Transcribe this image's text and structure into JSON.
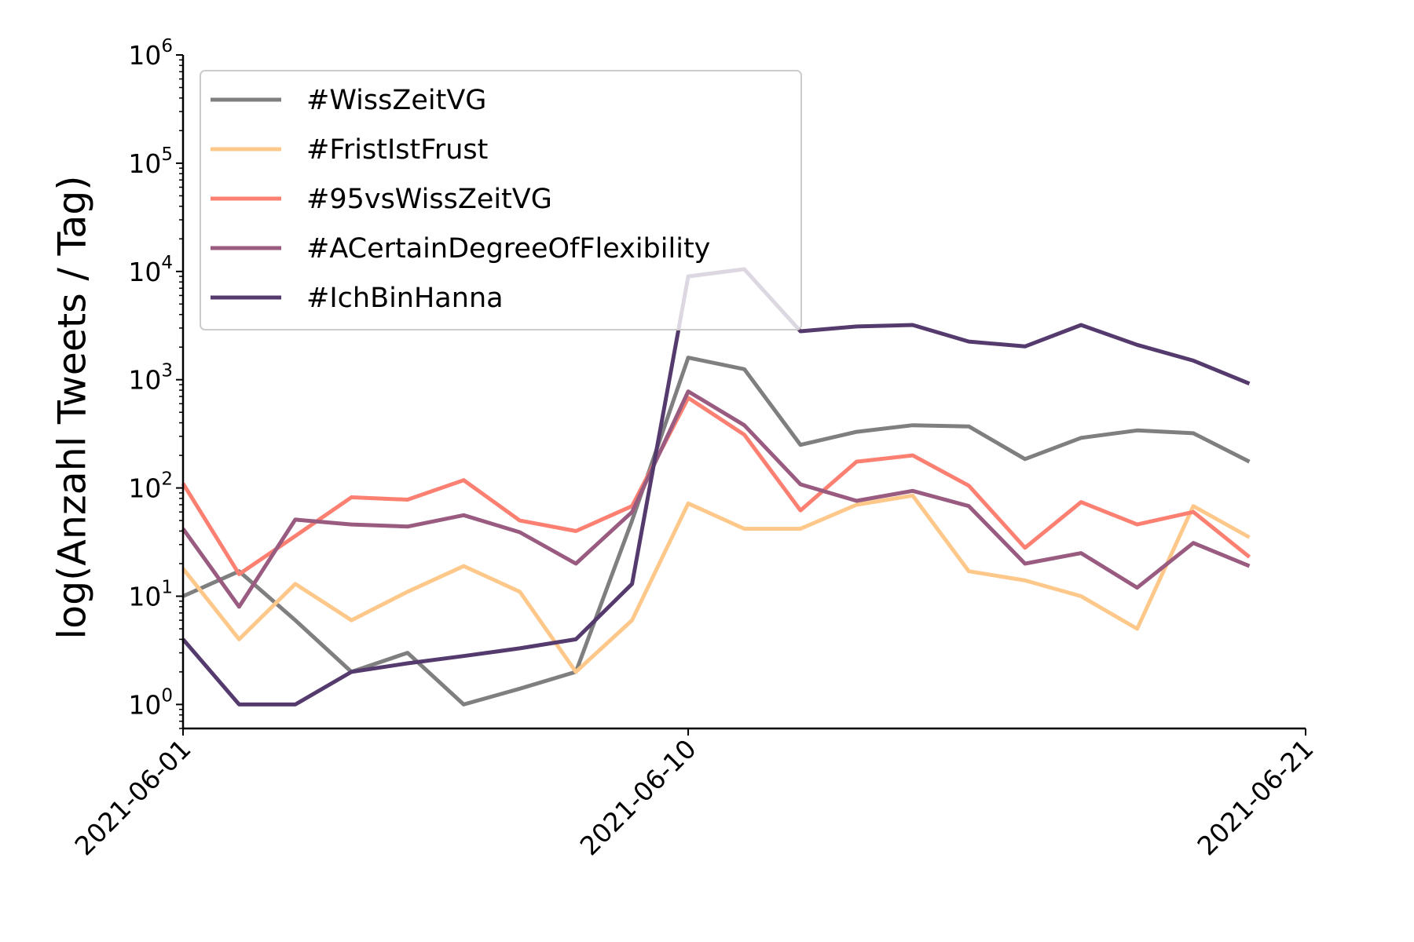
{
  "chart_data": {
    "type": "line",
    "title": "",
    "xlabel": "",
    "ylabel": "log(Anzahl Tweets / Tag)",
    "y_scale": "log",
    "ylim": [
      0.6,
      1000000
    ],
    "xlim": [
      "2021-06-01",
      "2021-06-21"
    ],
    "x_ticks": [
      "2021-06-01",
      "2021-06-10",
      "2021-06-21"
    ],
    "y_ticks": [
      {
        "value": 1,
        "base": "10",
        "exp": "0"
      },
      {
        "value": 10,
        "base": "10",
        "exp": "1"
      },
      {
        "value": 100,
        "base": "10",
        "exp": "2"
      },
      {
        "value": 1000,
        "base": "10",
        "exp": "3"
      },
      {
        "value": 10000,
        "base": "10",
        "exp": "4"
      },
      {
        "value": 100000,
        "base": "10",
        "exp": "5"
      },
      {
        "value": 1000000,
        "base": "10",
        "exp": "6"
      }
    ],
    "grid": false,
    "legend_position": "top-left",
    "x": [
      "2021-06-01",
      "2021-06-02",
      "2021-06-03",
      "2021-06-04",
      "2021-06-05",
      "2021-06-06",
      "2021-06-07",
      "2021-06-08",
      "2021-06-09",
      "2021-06-10",
      "2021-06-11",
      "2021-06-12",
      "2021-06-13",
      "2021-06-14",
      "2021-06-15",
      "2021-06-16",
      "2021-06-17",
      "2021-06-18",
      "2021-06-19",
      "2021-06-20"
    ],
    "series": [
      {
        "name": "#WissZeitVG",
        "color": "#7f7f7f",
        "values": [
          10,
          17,
          6,
          2,
          3,
          1,
          1.4,
          2,
          50,
          1600,
          1250,
          250,
          330,
          380,
          370,
          185,
          290,
          340,
          320,
          175
        ]
      },
      {
        "name": "#FristIstFrust",
        "color": "#fdc88a",
        "values": [
          18,
          4,
          13,
          6,
          11,
          19,
          11,
          2,
          6,
          72,
          42,
          42,
          70,
          85,
          17,
          14,
          10,
          5,
          68,
          35
        ]
      },
      {
        "name": "#95vsWissZeitVG",
        "color": "#fb8072",
        "values": [
          110,
          16,
          36,
          82,
          78,
          118,
          50,
          40,
          68,
          680,
          310,
          62,
          175,
          200,
          105,
          28,
          74,
          46,
          60,
          23
        ]
      },
      {
        "name": "#ACertainDegreeOfFlexibility",
        "color": "#9a5b80",
        "values": [
          42,
          8,
          51,
          46,
          44,
          56,
          39,
          20,
          60,
          780,
          380,
          108,
          76,
          94,
          68,
          20,
          25,
          12,
          31,
          19
        ]
      },
      {
        "name": "#IchBinHanna",
        "color": "#553a6e",
        "values": [
          4,
          1,
          1,
          2,
          2.4,
          2.8,
          3.3,
          4,
          13,
          9000,
          10500,
          2800,
          3100,
          3200,
          2250,
          2030,
          3200,
          2100,
          1500,
          920
        ]
      }
    ]
  }
}
